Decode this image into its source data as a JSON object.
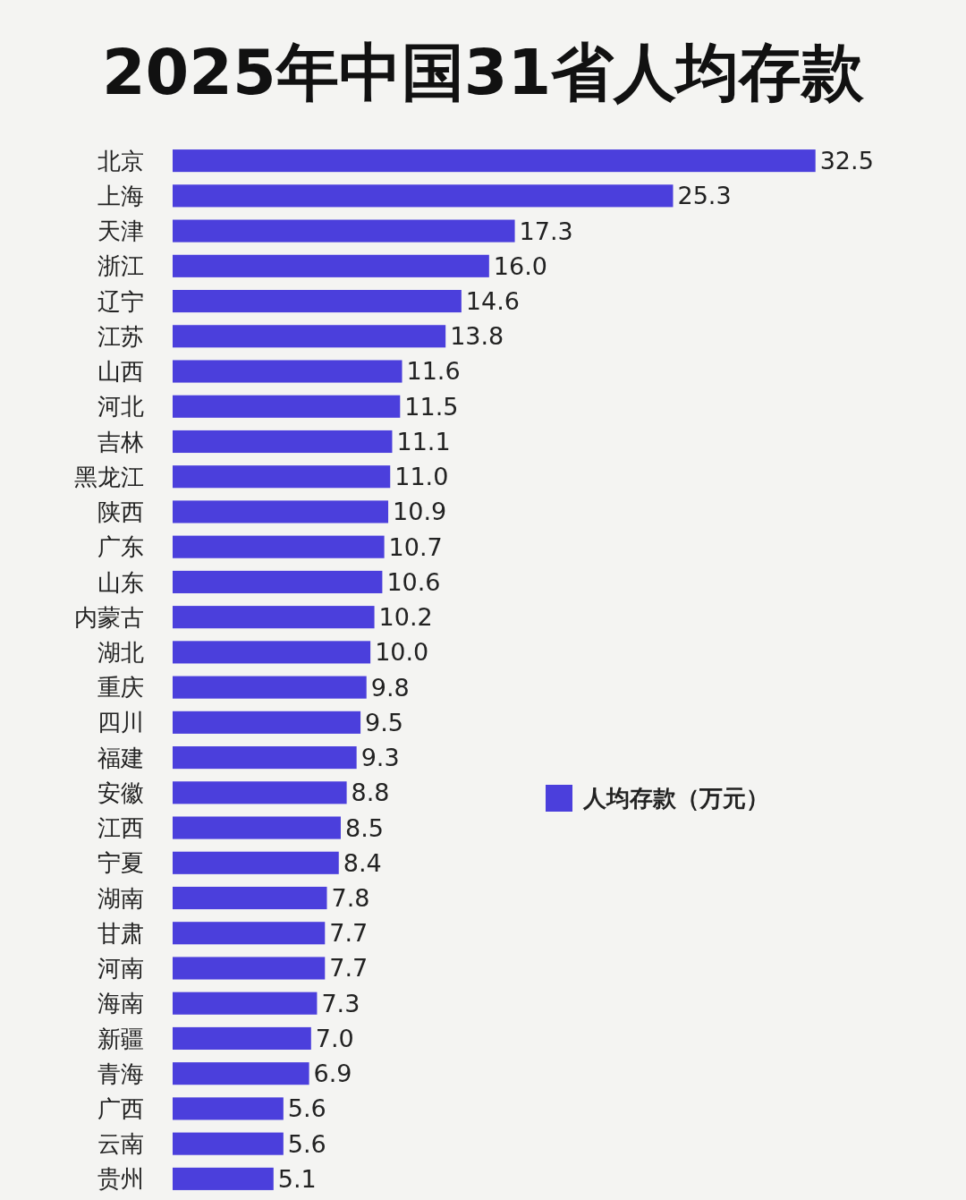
{
  "chart_data": {
    "type": "bar",
    "orientation": "horizontal",
    "title": "2025年中国31省人均存款",
    "categories": [
      "北京",
      "上海",
      "天津",
      "浙江",
      "辽宁",
      "江苏",
      "山西",
      "河北",
      "吉林",
      "黑龙江",
      "陕西",
      "广东",
      "山东",
      "内蒙古",
      "湖北",
      "重庆",
      "四川",
      "福建",
      "安徽",
      "江西",
      "宁夏",
      "湖南",
      "甘肃",
      "河南",
      "海南",
      "新疆",
      "青海",
      "广西",
      "云南",
      "贵州"
    ],
    "series": [
      {
        "name": "人均存款（万元）",
        "color": "#4b3fdc",
        "values": [
          32.5,
          25.3,
          17.3,
          16.0,
          14.6,
          13.8,
          11.6,
          11.5,
          11.1,
          11.0,
          10.9,
          10.7,
          10.6,
          10.2,
          10.0,
          9.8,
          9.5,
          9.3,
          8.8,
          8.5,
          8.4,
          7.8,
          7.7,
          7.7,
          7.3,
          7.0,
          6.9,
          5.6,
          5.6,
          5.1
        ],
        "value_labels": [
          "32.5",
          "25.3",
          "17.3",
          "16.0",
          "14.6",
          "13.8",
          "11.6",
          "11.5",
          "11.1",
          "11.0",
          "10.9",
          "10.7",
          "10.6",
          "10.2",
          "10.0",
          "9.8",
          "9.5",
          "9.3",
          "8.8",
          "8.5",
          "8.4",
          "7.8",
          "7.7",
          "7.7",
          "7.3",
          "7.0",
          "6.9",
          "5.6",
          "5.6",
          "5.1"
        ]
      }
    ],
    "tick_labels": "y",
    "legend": "right"
  }
}
